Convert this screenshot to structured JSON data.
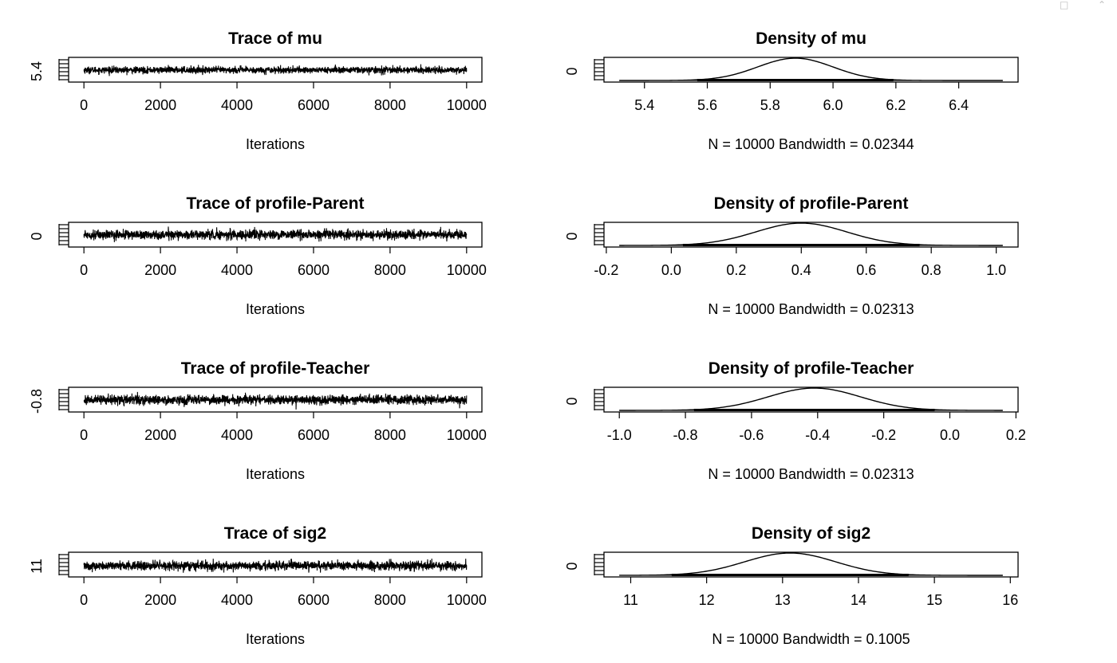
{
  "window": {
    "icons": [
      "popout-icon",
      "collapse-icon"
    ]
  },
  "chart_data": [
    {
      "type": "line",
      "title": "Trace of mu",
      "xlabel": "Iterations",
      "ylabel": "",
      "x_ticks": [
        0,
        2000,
        4000,
        6000,
        8000,
        10000
      ],
      "y_ticks": [
        5.4
      ],
      "xlim": [
        0,
        10000
      ],
      "ylim": [
        5.2,
        6.6
      ],
      "series": [
        {
          "n": 10000,
          "mean": 5.88,
          "sd": 0.12
        }
      ]
    },
    {
      "type": "line",
      "title": "Density of mu",
      "xlabel": "N = 10000   Bandwidth = 0.02344",
      "ylabel": "",
      "x_ticks": [
        5.4,
        5.6,
        5.8,
        6.0,
        6.2,
        6.4
      ],
      "y_ticks": [
        0.0
      ],
      "xlim": [
        5.32,
        6.54
      ],
      "series": [
        {
          "mode": 5.88,
          "sd": 0.12,
          "range": [
            5.32,
            6.54
          ]
        }
      ]
    },
    {
      "type": "line",
      "title": "Trace of profile-Parent",
      "xlabel": "Iterations",
      "ylabel": "",
      "x_ticks": [
        0,
        2000,
        4000,
        6000,
        8000,
        10000
      ],
      "y_ticks": [
        0.0
      ],
      "xlim": [
        0,
        10000
      ],
      "ylim": [
        -0.2,
        1.0
      ],
      "series": [
        {
          "n": 10000,
          "mean": 0.4,
          "sd": 0.14
        }
      ]
    },
    {
      "type": "line",
      "title": "Density of profile-Parent",
      "xlabel": "N = 10000   Bandwidth = 0.02313",
      "ylabel": "",
      "x_ticks": [
        -0.2,
        0.0,
        0.2,
        0.4,
        0.6,
        0.8,
        1.0
      ],
      "y_ticks": [
        0.0
      ],
      "xlim": [
        -0.16,
        1.02
      ],
      "series": [
        {
          "mode": 0.4,
          "sd": 0.14,
          "range": [
            -0.16,
            1.02
          ]
        }
      ]
    },
    {
      "type": "line",
      "title": "Trace of profile-Teacher",
      "xlabel": "Iterations",
      "ylabel": "",
      "x_ticks": [
        0,
        2000,
        4000,
        6000,
        8000,
        10000
      ],
      "y_ticks": [
        -0.8
      ],
      "xlim": [
        0,
        10000
      ],
      "ylim": [
        -1.0,
        0.2
      ],
      "series": [
        {
          "n": 10000,
          "mean": -0.41,
          "sd": 0.14
        }
      ]
    },
    {
      "type": "line",
      "title": "Density of profile-Teacher",
      "xlabel": "N = 10000   Bandwidth = 0.02313",
      "ylabel": "",
      "x_ticks": [
        -1.0,
        -0.8,
        -0.6,
        -0.4,
        -0.2,
        0.0,
        0.2
      ],
      "y_ticks": [
        0.0
      ],
      "xlim": [
        -1.0,
        0.16
      ],
      "series": [
        {
          "mode": -0.41,
          "sd": 0.14,
          "range": [
            -1.0,
            0.16
          ]
        }
      ]
    },
    {
      "type": "line",
      "title": "Trace of sig2",
      "xlabel": "Iterations",
      "ylabel": "",
      "x_ticks": [
        0,
        2000,
        4000,
        6000,
        8000,
        10000
      ],
      "y_ticks": [
        11
      ],
      "xlim": [
        0,
        10000
      ],
      "ylim": [
        10.8,
        16
      ],
      "series": [
        {
          "n": 10000,
          "mean": 13.1,
          "sd": 0.6
        }
      ]
    },
    {
      "type": "line",
      "title": "Density of sig2",
      "xlabel": "N = 10000   Bandwidth = 0.1005",
      "ylabel": "",
      "x_ticks": [
        11,
        12,
        13,
        14,
        15,
        16
      ],
      "y_ticks": [
        0.0
      ],
      "xlim": [
        10.85,
        15.9
      ],
      "series": [
        {
          "mode": 13.1,
          "sd": 0.6,
          "range": [
            10.85,
            15.9
          ]
        }
      ]
    }
  ]
}
